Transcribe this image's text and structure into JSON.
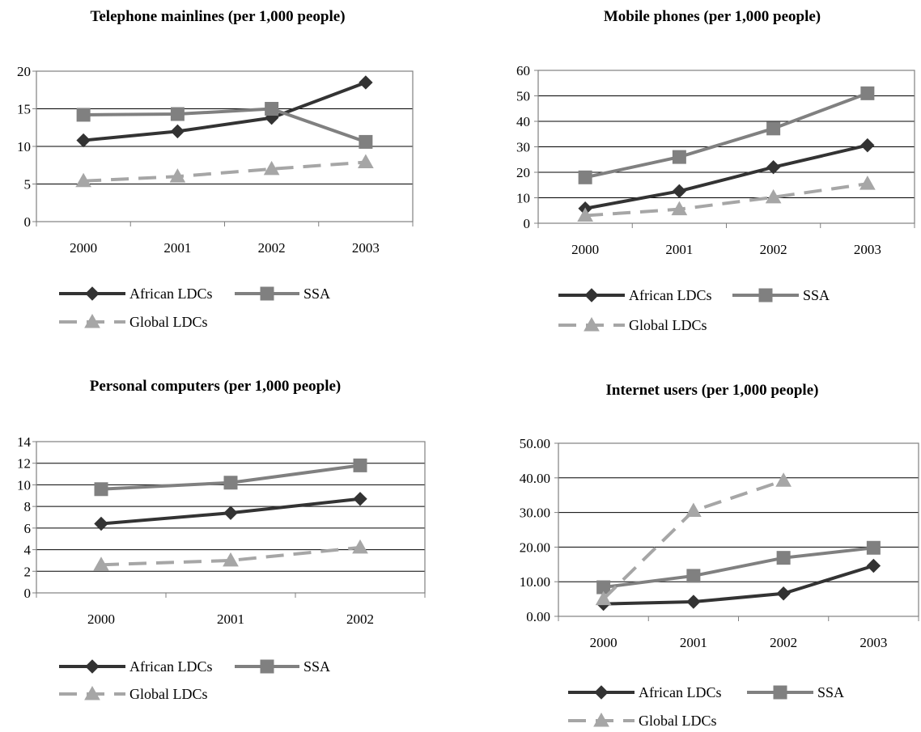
{
  "colors": {
    "african": "#333333",
    "ssa": "#808080",
    "global": "#a6a6a6",
    "axis": "#808080",
    "grid": "#000000"
  },
  "legend_labels": {
    "african": "African LDCs",
    "ssa": "SSA",
    "global": "Global LDCs"
  },
  "chart_data": [
    {
      "type": "line",
      "title": "Telephone mainlines (per 1,000 people)",
      "categories": [
        "2000",
        "2001",
        "2002",
        "2003"
      ],
      "ylim": [
        0,
        20
      ],
      "yticks": [
        "0",
        "5",
        "10",
        "15",
        "20"
      ],
      "grid": true,
      "legend": "bottom",
      "series": [
        {
          "name": "African LDCs",
          "values": [
            10.8,
            12.0,
            13.8,
            18.5
          ],
          "marker": "diamond",
          "dashed": false
        },
        {
          "name": "SSA",
          "values": [
            14.2,
            14.3,
            15.0,
            10.6
          ],
          "marker": "square",
          "dashed": false
        },
        {
          "name": "Global LDCs",
          "values": [
            5.4,
            6.0,
            7.0,
            7.9
          ],
          "marker": "triangle",
          "dashed": true
        }
      ]
    },
    {
      "type": "line",
      "title": "Mobile phones (per 1,000 people)",
      "categories": [
        "2000",
        "2001",
        "2002",
        "2003"
      ],
      "ylim": [
        0,
        60
      ],
      "yticks": [
        "0",
        "10",
        "20",
        "30",
        "40",
        "50",
        "60"
      ],
      "grid": true,
      "legend": "bottom",
      "series": [
        {
          "name": "African LDCs",
          "values": [
            5.8,
            12.6,
            22.0,
            30.6
          ],
          "marker": "diamond",
          "dashed": false
        },
        {
          "name": "SSA",
          "values": [
            18.0,
            26.0,
            37.2,
            51.0
          ],
          "marker": "square",
          "dashed": false
        },
        {
          "name": "Global LDCs",
          "values": [
            3.0,
            5.5,
            10.2,
            15.5
          ],
          "marker": "triangle",
          "dashed": true
        }
      ]
    },
    {
      "type": "line",
      "title": "Personal computers (per 1,000 people)",
      "categories": [
        "2000",
        "2001",
        "2002"
      ],
      "ylim": [
        0,
        14
      ],
      "yticks": [
        "0",
        "2",
        "4",
        "6",
        "8",
        "10",
        "12",
        "14"
      ],
      "grid": true,
      "legend": "bottom",
      "series": [
        {
          "name": "African LDCs",
          "values": [
            6.4,
            7.4,
            8.7
          ],
          "marker": "diamond",
          "dashed": false
        },
        {
          "name": "SSA",
          "values": [
            9.6,
            10.2,
            11.8
          ],
          "marker": "square",
          "dashed": false
        },
        {
          "name": "Global LDCs",
          "values": [
            2.6,
            3.0,
            4.2
          ],
          "marker": "triangle",
          "dashed": true
        }
      ]
    },
    {
      "type": "line",
      "title": "Internet users (per 1,000 people)",
      "categories": [
        "2000",
        "2001",
        "2002",
        "2003"
      ],
      "ylim": [
        0,
        50
      ],
      "yticks": [
        "0.00",
        "10.00",
        "20.00",
        "30.00",
        "40.00",
        "50.00"
      ],
      "grid": true,
      "legend": "bottom",
      "series": [
        {
          "name": "African LDCs",
          "values": [
            3.6,
            4.2,
            6.6,
            14.6
          ],
          "marker": "diamond",
          "dashed": false
        },
        {
          "name": "SSA",
          "values": [
            8.4,
            11.7,
            16.9,
            19.8
          ],
          "marker": "square",
          "dashed": false
        },
        {
          "name": "Global LDCs",
          "values": [
            5.0,
            30.5,
            39.2,
            null
          ],
          "marker": "triangle",
          "dashed": true
        }
      ]
    }
  ]
}
